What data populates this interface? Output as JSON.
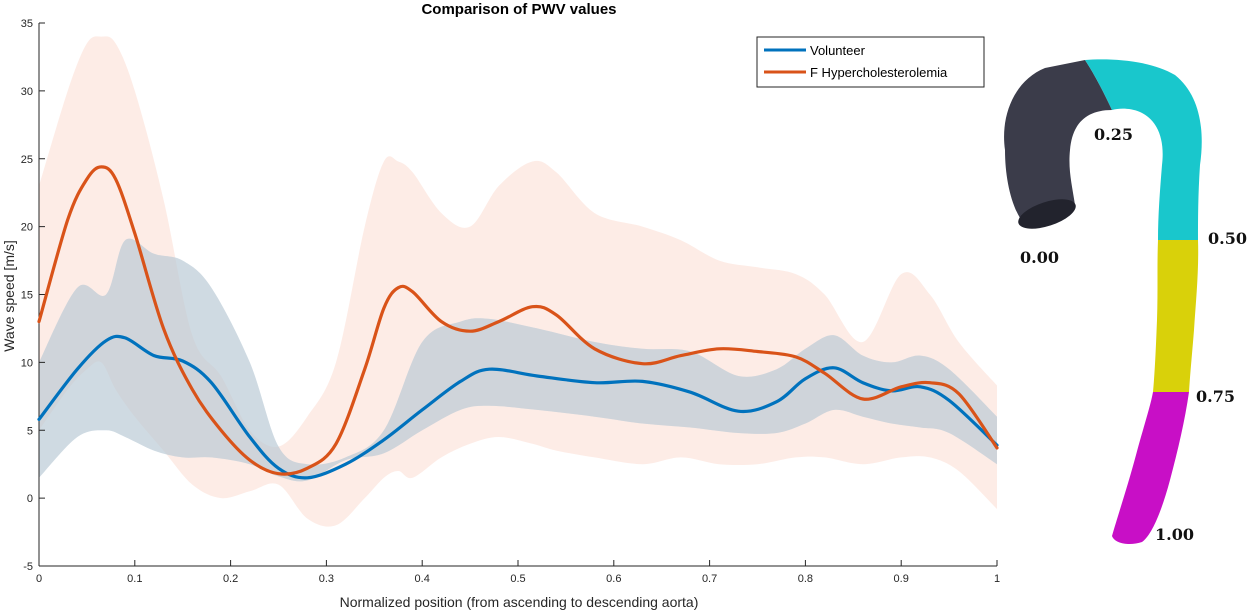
{
  "chart_data": {
    "type": "line",
    "title": "Comparison of PWV values",
    "xlabel": "Normalized position (from ascending to descending aorta)",
    "ylabel": "Wave speed [m/s]",
    "xlim": [
      0,
      1
    ],
    "ylim": [
      -5,
      35
    ],
    "xticks": [
      0,
      0.1,
      0.2,
      0.3,
      0.4,
      0.5,
      0.6,
      0.7,
      0.8,
      0.9,
      1
    ],
    "xtick_labels": [
      "0",
      "0.1",
      "0.2",
      "0.3",
      "0.4",
      "0.5",
      "0.6",
      "0.7",
      "0.8",
      "0.9",
      "1"
    ],
    "yticks": [
      -5,
      0,
      5,
      10,
      15,
      20,
      25,
      30,
      35
    ],
    "ytick_labels": [
      "-5",
      "0",
      "5",
      "10",
      "15",
      "20",
      "25",
      "30",
      "35"
    ],
    "legend_position": "top-right",
    "series": [
      {
        "name": "Volunteer",
        "color": "#0072BD",
        "band_color": "#9fcbeb",
        "x": [
          0,
          0.04,
          0.07,
          0.09,
          0.12,
          0.15,
          0.18,
          0.22,
          0.25,
          0.28,
          0.32,
          0.36,
          0.4,
          0.44,
          0.47,
          0.52,
          0.58,
          0.63,
          0.68,
          0.73,
          0.77,
          0.8,
          0.83,
          0.86,
          0.89,
          0.92,
          0.95,
          1.0
        ],
        "values": [
          5.8,
          9.5,
          11.6,
          11.8,
          10.5,
          10.1,
          8.5,
          4.5,
          2.2,
          1.5,
          2.5,
          4.3,
          6.5,
          8.6,
          9.5,
          9.0,
          8.5,
          8.6,
          7.8,
          6.4,
          7.1,
          8.8,
          9.6,
          8.5,
          7.9,
          8.2,
          7.2,
          3.9
        ],
        "lower": [
          1.5,
          4.5,
          5.0,
          4.5,
          3.5,
          3.0,
          3.0,
          2.5,
          1.6,
          1.3,
          2.8,
          3.3,
          5.0,
          6.5,
          6.8,
          6.5,
          6.0,
          5.5,
          5.2,
          4.8,
          4.8,
          5.5,
          6.5,
          6.0,
          5.5,
          5.2,
          4.8,
          2.5
        ],
        "upper": [
          10.0,
          15.5,
          15.0,
          19.0,
          18.0,
          17.5,
          15.5,
          10.0,
          3.8,
          2.5,
          3.0,
          5.0,
          11.5,
          13.0,
          13.2,
          12.5,
          11.5,
          11.0,
          10.8,
          9.0,
          9.5,
          11.0,
          12.0,
          10.5,
          10.0,
          10.5,
          9.5,
          6.0
        ]
      },
      {
        "name": "F Hypercholesterolemia",
        "color": "#D95319",
        "band_color": "#fbe0d6",
        "x": [
          0,
          0.03,
          0.05,
          0.065,
          0.08,
          0.1,
          0.13,
          0.16,
          0.19,
          0.22,
          0.25,
          0.28,
          0.31,
          0.34,
          0.36,
          0.375,
          0.39,
          0.42,
          0.45,
          0.48,
          0.515,
          0.54,
          0.58,
          0.63,
          0.67,
          0.71,
          0.75,
          0.79,
          0.82,
          0.86,
          0.9,
          0.93,
          0.96,
          1.0
        ],
        "values": [
          13.0,
          20.5,
          23.5,
          24.4,
          23.5,
          19.5,
          12.5,
          8.0,
          5.0,
          2.8,
          1.8,
          2.2,
          4.0,
          9.5,
          14.0,
          15.5,
          15.2,
          13.0,
          12.3,
          13.0,
          14.1,
          13.5,
          11.0,
          9.9,
          10.5,
          11.0,
          10.8,
          10.4,
          9.2,
          7.3,
          8.2,
          8.5,
          7.7,
          3.7
        ],
        "lower": [
          5.0,
          8.0,
          9.5,
          10.0,
          8.0,
          6.0,
          3.5,
          1.0,
          0.0,
          0.5,
          1.0,
          -1.5,
          -2.0,
          0.0,
          1.5,
          2.0,
          1.5,
          3.0,
          4.0,
          4.5,
          4.0,
          3.5,
          3.0,
          2.5,
          3.0,
          2.5,
          2.5,
          3.0,
          3.0,
          2.5,
          3.0,
          3.0,
          2.0,
          -0.8
        ],
        "upper": [
          23.0,
          30.0,
          33.5,
          34.0,
          33.5,
          30.0,
          22.0,
          12.0,
          9.0,
          5.0,
          3.8,
          6.0,
          10.0,
          20.0,
          24.8,
          24.8,
          24.0,
          21.0,
          20.0,
          23.0,
          24.8,
          24.0,
          21.0,
          20.0,
          19.0,
          17.5,
          17.0,
          16.5,
          15.0,
          11.5,
          16.5,
          15.0,
          11.5,
          8.3
        ]
      }
    ]
  },
  "aorta": {
    "labels": [
      "0.00",
      "0.25",
      "0.50",
      "0.75",
      "1.00"
    ],
    "colors": {
      "seg1": "#3b3c4a",
      "seg2": "#19c7cc",
      "seg3": "#d9d10a",
      "seg4": "#c80fc6"
    }
  }
}
